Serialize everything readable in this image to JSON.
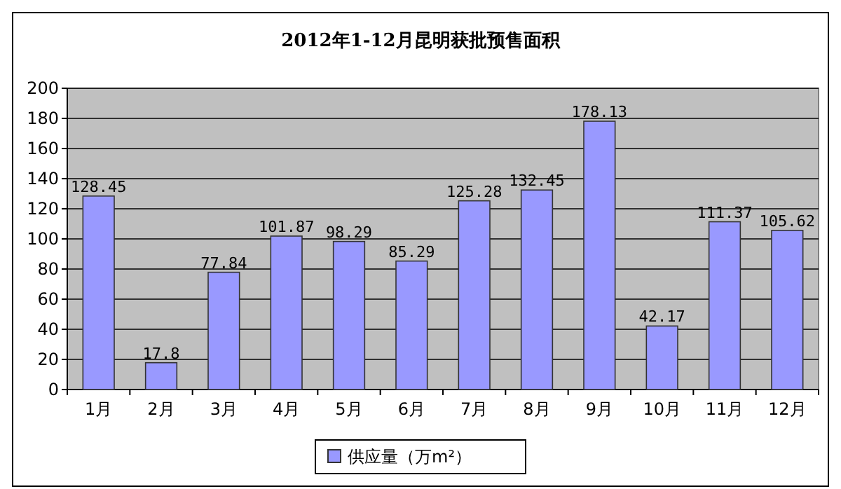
{
  "chart_data": {
    "type": "bar",
    "title": "2012年1-12月昆明获批预售面积",
    "categories": [
      "1月",
      "2月",
      "3月",
      "4月",
      "5月",
      "6月",
      "7月",
      "8月",
      "9月",
      "10月",
      "11月",
      "12月"
    ],
    "series": [
      {
        "name": "供应量（万m²）",
        "color": "#9999ff",
        "values": [
          128.45,
          17.8,
          77.84,
          101.87,
          98.29,
          85.29,
          125.28,
          132.45,
          178.13,
          42.17,
          111.37,
          105.62
        ]
      }
    ],
    "ylim": [
      0,
      200
    ],
    "yticks": [
      0,
      20,
      40,
      60,
      80,
      100,
      120,
      140,
      160,
      180,
      200
    ],
    "grid": "y",
    "legend": "bottom",
    "data_labels": true
  }
}
